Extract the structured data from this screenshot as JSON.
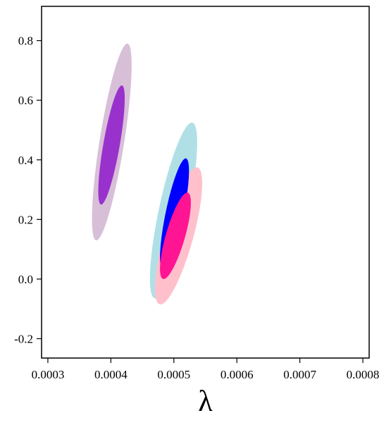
{
  "chart_data": {
    "type": "contour",
    "title": "",
    "xlabel": "λ",
    "ylabel": "",
    "xlim": [
      0.00029,
      0.00081
    ],
    "ylim": [
      -0.265,
      0.915
    ],
    "x_ticks": [
      0.0003,
      0.0004,
      0.0005,
      0.0006,
      0.0007,
      0.0008
    ],
    "x_tick_labels": [
      "0.0003",
      "0.0004",
      "0.0005",
      "0.0006",
      "0.0007",
      "0.0008"
    ],
    "y_ticks": [
      -0.2,
      0.0,
      0.2,
      0.4,
      0.6,
      0.8
    ],
    "y_tick_labels": [
      "-0.2",
      "0.0",
      "0.2",
      "0.4",
      "0.6",
      "0.8"
    ],
    "grid": false,
    "legend": "none",
    "series": [
      {
        "outer_color": "#d8bfd8",
        "inner_color": "#9932cc",
        "outer": {
          "x_range": [
            0.00037,
            0.000433
          ],
          "y_range": [
            0.13,
            0.79
          ]
        },
        "inner": {
          "x_range": [
            0.00038,
            0.000422
          ],
          "y_range": [
            0.25,
            0.65
          ]
        }
      },
      {
        "outer_color": "#b0e0e6",
        "inner_color": "#0000ff",
        "outer": {
          "x_range": [
            0.000462,
            0.000537
          ],
          "y_range": [
            -0.065,
            0.525
          ]
        },
        "inner": {
          "x_range": [
            0.000478,
            0.000524
          ],
          "y_range": [
            0.03,
            0.405
          ]
        }
      },
      {
        "outer_color": "#ffc0cb",
        "inner_color": "#ff1493",
        "outer": {
          "x_range": [
            0.00047,
            0.000545
          ],
          "y_range": [
            -0.085,
            0.375
          ]
        },
        "inner": {
          "x_range": [
            0.000478,
            0.000527
          ],
          "y_range": [
            0.0,
            0.29
          ]
        }
      }
    ]
  }
}
